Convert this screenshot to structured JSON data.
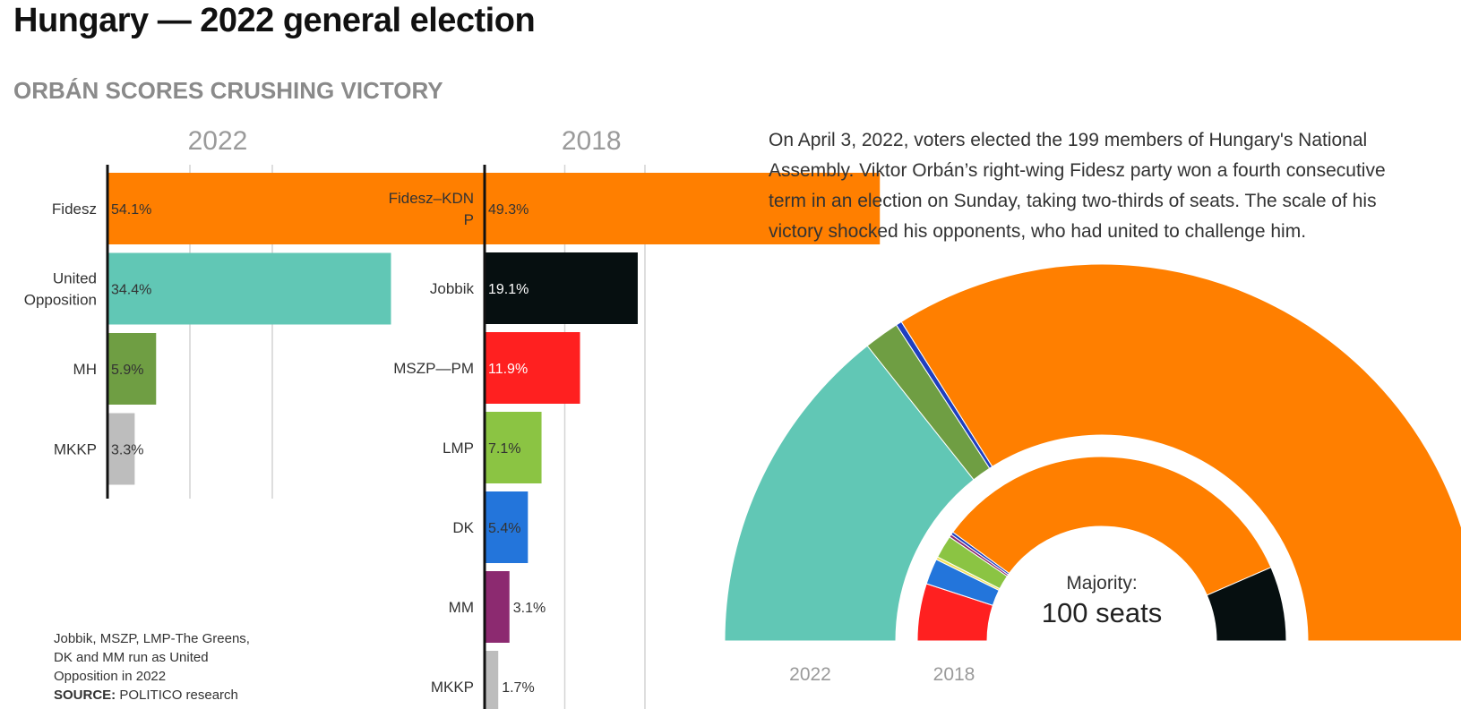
{
  "title": "Hungary — 2022 general election",
  "subtitle": "ORBÁN SCORES CRUSHING VICTORY",
  "intro": "On April 3, 2022, voters elected the 199 members of Hungary's National Assembly. Viktor Orbán’s right-wing Fidesz party won a fourth consecutive term in an election on Sunday, taking two-thirds of seats. The scale of his victory shocked his opponents, who had united to challenge him.",
  "footnote": {
    "note": "Jobbik, MSZP, LMP-The Greens, DK and MM run as United Opposition in 2022",
    "source_label": "SOURCE:",
    "source": "POLITICO research"
  },
  "colors": {
    "fidesz": "#ff7f00",
    "united_opposition": "#61c7b5",
    "mh": "#6f9e43",
    "mkkp": "#bdbdbd",
    "jobbik": "#060f10",
    "mszp_pm": "#ff2020",
    "lmp": "#8bc443",
    "dk": "#2375db",
    "mm": "#8c2a70",
    "other_blue": "#1f3fbf"
  },
  "chart_data": [
    {
      "type": "bar",
      "title": "2022",
      "orientation": "horizontal",
      "xlim": [
        0,
        60
      ],
      "grid": true,
      "categories": [
        "Fidesz",
        "United Opposition",
        "MH",
        "MKKP"
      ],
      "values": [
        54.1,
        34.4,
        5.9,
        3.3
      ],
      "labels": [
        "54.1%",
        "34.4%",
        "5.9%",
        "3.3%"
      ],
      "colors": [
        "#ff7f00",
        "#61c7b5",
        "#6f9e43",
        "#bdbdbd"
      ],
      "label_colors": [
        "#333333",
        "#333333",
        "#333333",
        "#333333"
      ]
    },
    {
      "type": "bar",
      "title": "2018",
      "orientation": "horizontal",
      "xlim": [
        0,
        60
      ],
      "grid": true,
      "categories": [
        "Fidesz–KDNP",
        "Jobbik",
        "MSZP—PM",
        "LMP",
        "DK",
        "MM",
        "MKKP"
      ],
      "values": [
        49.3,
        19.1,
        11.9,
        7.1,
        5.4,
        3.1,
        1.7
      ],
      "labels": [
        "49.3%",
        "19.1%",
        "11.9%",
        "7.1%",
        "5.4%",
        "3.1%",
        "1.7%"
      ],
      "colors": [
        "#ff7f00",
        "#060f10",
        "#ff2020",
        "#8bc443",
        "#2375db",
        "#8c2a70",
        "#bdbdbd"
      ],
      "label_colors": [
        "#333333",
        "#ffffff",
        "#ffffff",
        "#333333",
        "#333333",
        "#333333",
        "#333333"
      ]
    },
    {
      "type": "parliament",
      "total_seats": 199,
      "majority_label": "Majority:",
      "majority_value": "100 seats",
      "rings": [
        {
          "label": "2022",
          "ring": "outer",
          "segments": [
            {
              "party": "United Opposition",
              "seats": 57,
              "color": "#61c7b5"
            },
            {
              "party": "MH",
              "seats": 6,
              "color": "#6f9e43"
            },
            {
              "party": "Other",
              "seats": 1,
              "color": "#1f3fbf"
            },
            {
              "party": "Fidesz",
              "seats": 135,
              "color": "#ff7f00"
            }
          ]
        },
        {
          "label": "2018",
          "ring": "inner",
          "segments": [
            {
              "party": "MSZP—PM",
              "seats": 20,
              "color": "#ff2020"
            },
            {
              "party": "DK",
              "seats": 9,
              "color": "#2375db"
            },
            {
              "party": "Other",
              "seats": 1,
              "color": "#f2e05a"
            },
            {
              "party": "LMP",
              "seats": 8,
              "color": "#8bc443"
            },
            {
              "party": "Other",
              "seats": 1,
              "color": "#8c2a70"
            },
            {
              "party": "Other",
              "seats": 1,
              "color": "#1f3fbf"
            },
            {
              "party": "Fidesz–KDNP",
              "seats": 133,
              "color": "#ff7f00"
            },
            {
              "party": "Jobbik",
              "seats": 26,
              "color": "#060f10"
            }
          ]
        }
      ]
    }
  ]
}
